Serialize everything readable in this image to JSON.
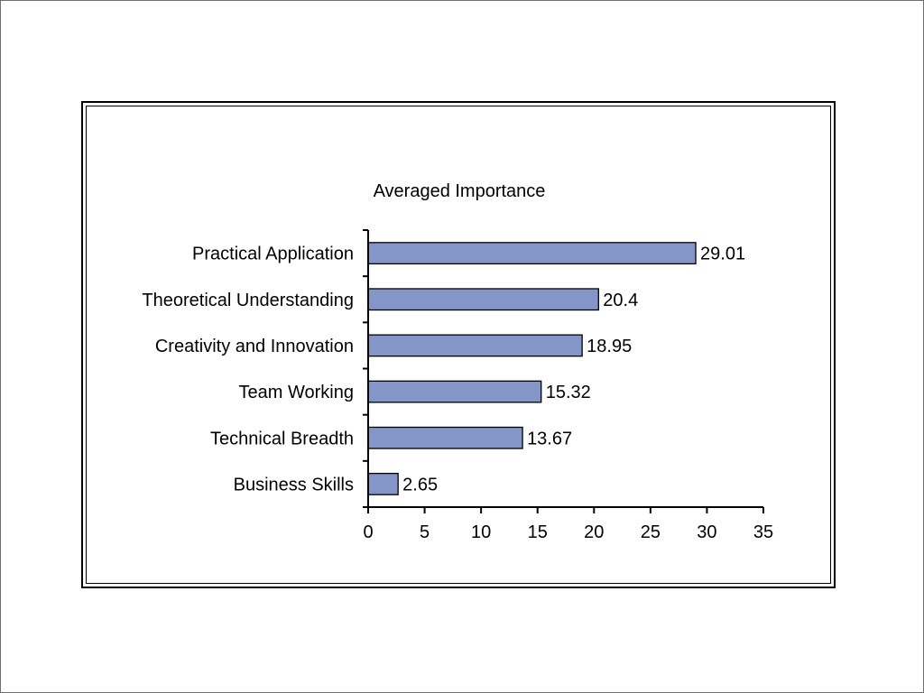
{
  "chart_data": {
    "type": "bar",
    "orientation": "horizontal",
    "title": "Averaged Importance",
    "categories": [
      "Practical Application",
      "Theoretical Understanding",
      "Creativity and Innovation",
      "Team Working",
      "Technical Breadth",
      "Business Skills"
    ],
    "values": [
      29.01,
      20.4,
      18.95,
      15.32,
      13.67,
      2.65
    ],
    "value_labels": [
      "29.01",
      "20.4",
      "18.95",
      "15.32",
      "13.67",
      "2.65"
    ],
    "xlim": [
      0,
      35
    ],
    "xticks": [
      0,
      5,
      10,
      15,
      20,
      25,
      30,
      35
    ],
    "xtick_labels": [
      "0",
      "5",
      "10",
      "15",
      "20",
      "25",
      "30",
      "35"
    ],
    "xlabel": "",
    "ylabel": "",
    "grid": false,
    "legend": false,
    "colors": {
      "bar_fill": "#8396c7",
      "bar_stroke": "#000000"
    }
  }
}
